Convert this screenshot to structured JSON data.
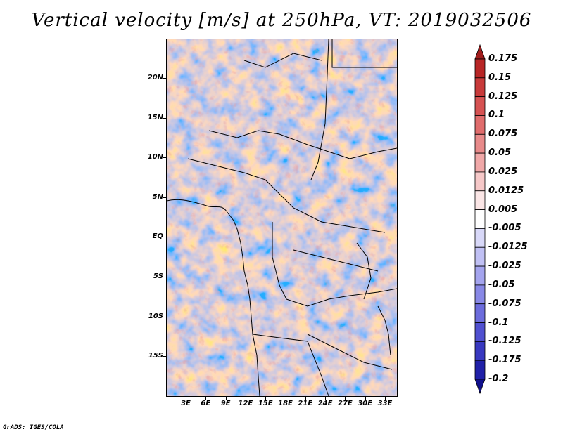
{
  "title": "Vertical velocity [m/s] at 250hPa, VT: 2019032506",
  "credit": "GrADS: IGES/COLA",
  "map": {
    "lat_labels": [
      "20N",
      "15N",
      "10N",
      "5N",
      "EQ",
      "5S",
      "10S",
      "15S"
    ],
    "lat_values": [
      20,
      15,
      10,
      5,
      0,
      -5,
      -10,
      -15
    ],
    "lon_labels": [
      "3E",
      "6E",
      "9E",
      "12E",
      "15E",
      "18E",
      "21E",
      "24E",
      "27E",
      "30E",
      "33E"
    ],
    "lon_values": [
      3,
      6,
      9,
      12,
      15,
      18,
      21,
      24,
      27,
      30,
      33
    ],
    "lat_range": [
      -20,
      25
    ],
    "lon_range": [
      0,
      35
    ]
  },
  "colorbar": {
    "labels": [
      "0.175",
      "0.15",
      "0.125",
      "0.1",
      "0.075",
      "0.05",
      "0.025",
      "0.0125",
      "0.005",
      "-0.005",
      "-0.0125",
      "-0.025",
      "-0.05",
      "-0.075",
      "-0.1",
      "-0.125",
      "-0.175",
      "-0.2"
    ],
    "colors": [
      "#a01c1c",
      "#b82626",
      "#c83a3a",
      "#d65252",
      "#e06c6c",
      "#e88a8a",
      "#f0a8a8",
      "#f6c8c8",
      "#fbe6e6",
      "#ffffff",
      "#d8d8f8",
      "#c0c0f4",
      "#a4a4ee",
      "#8888e6",
      "#6c6cdc",
      "#5050d0",
      "#3838c0",
      "#2020a8",
      "#10108c"
    ]
  }
}
